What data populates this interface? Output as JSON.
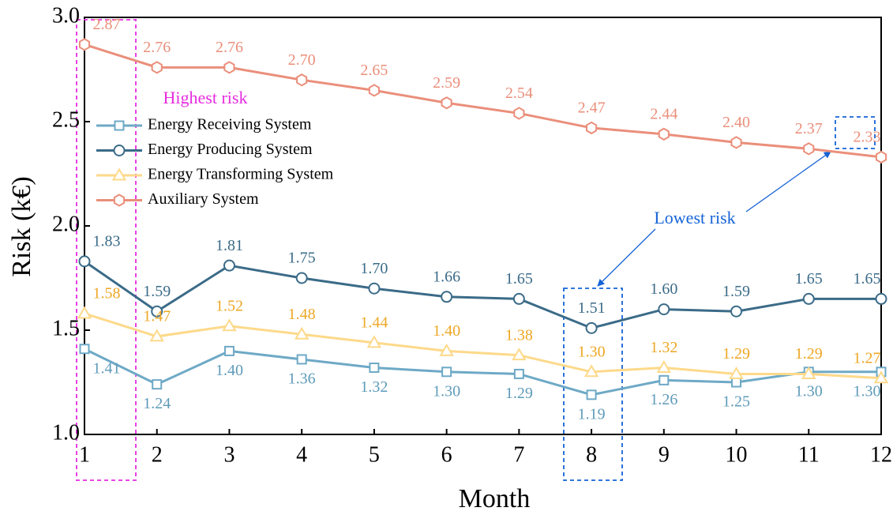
{
  "chart_data": {
    "type": "line",
    "x_label": "Month",
    "y_label": "Risk (k€)",
    "x": [
      1,
      2,
      3,
      4,
      5,
      6,
      7,
      8,
      9,
      10,
      11,
      12
    ],
    "xlim": [
      1,
      12
    ],
    "xticks": [
      1,
      2,
      3,
      4,
      5,
      6,
      7,
      8,
      9,
      10,
      11,
      12
    ],
    "ylim": [
      1.0,
      3.0
    ],
    "yticks": [
      {
        "value": 1.0,
        "label": "1.0"
      },
      {
        "value": 1.5,
        "label": "1.5"
      },
      {
        "value": 2.0,
        "label": "2.0"
      },
      {
        "value": 2.5,
        "label": "2.5"
      },
      {
        "value": 3.0,
        "label": "3.0"
      }
    ],
    "legend": "upper left",
    "series": [
      {
        "name": "Energy Receiving System",
        "color": "#6ea9c6",
        "label_color": "#5e9bb9",
        "marker": "square",
        "label_side": "below",
        "values": [
          1.41,
          1.24,
          1.4,
          1.36,
          1.32,
          1.3,
          1.29,
          1.19,
          1.26,
          1.25,
          1.3,
          1.3
        ],
        "value_labels": [
          "1.41",
          "1.24",
          "1.40",
          "1.36",
          "1.32",
          "1.30",
          "1.29",
          "1.19",
          "1.26",
          "1.25",
          "1.30",
          "1.30"
        ]
      },
      {
        "name": "Energy Producing System",
        "color": "#3b6b88",
        "label_color": "#3b6b88",
        "marker": "circle",
        "label_side": "above",
        "values": [
          1.83,
          1.59,
          1.81,
          1.75,
          1.7,
          1.66,
          1.65,
          1.51,
          1.6,
          1.59,
          1.65,
          1.65
        ],
        "value_labels": [
          "1.83",
          "1.59",
          "1.81",
          "1.75",
          "1.70",
          "1.66",
          "1.65",
          "1.51",
          "1.60",
          "1.59",
          "1.65",
          "1.65"
        ]
      },
      {
        "name": "Energy Transforming System",
        "color": "#fdd98a",
        "label_color": "#eea725",
        "marker": "triangle",
        "label_side": "above",
        "values": [
          1.58,
          1.47,
          1.52,
          1.48,
          1.44,
          1.4,
          1.38,
          1.3,
          1.32,
          1.29,
          1.29,
          1.27
        ],
        "value_labels": [
          "1.58",
          "1.47",
          "1.52",
          "1.48",
          "1.44",
          "1.40",
          "1.38",
          "1.30",
          "1.32",
          "1.29",
          "1.29",
          "1.27"
        ]
      },
      {
        "name": "Auxiliary System",
        "color": "#ea8f7b",
        "label_color": "#ea8f7b",
        "marker": "hexagon",
        "label_side": "above",
        "values": [
          2.87,
          2.76,
          2.76,
          2.7,
          2.65,
          2.59,
          2.54,
          2.47,
          2.44,
          2.4,
          2.37,
          2.33
        ],
        "value_labels": [
          "2.87",
          "2.76",
          "2.76",
          "2.70",
          "2.65",
          "2.59",
          "2.54",
          "2.47",
          "2.44",
          "2.40",
          "2.37",
          "2.33"
        ]
      }
    ],
    "annotations": [
      "Highest risk",
      "Lowest risk"
    ]
  }
}
